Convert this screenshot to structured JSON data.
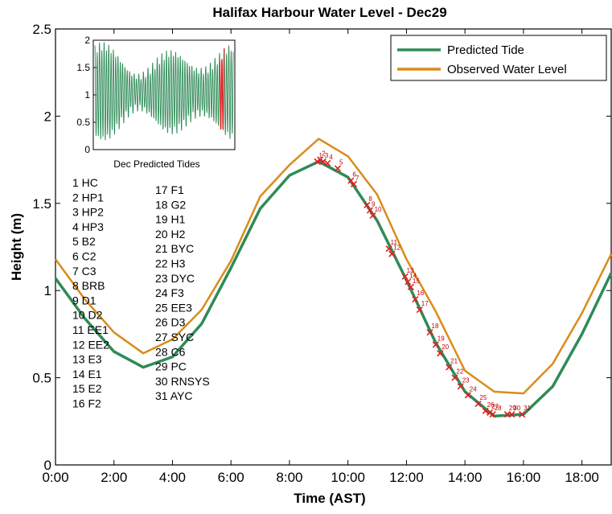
{
  "chart_data": {
    "type": "line",
    "title": "Halifax Harbour Water Level - Dec29",
    "xlabel": "Time (AST)",
    "ylabel": "Height (m)",
    "xlim": [
      0,
      19
    ],
    "ylim": [
      0,
      2.5
    ],
    "x_ticks": [
      "0:00",
      "2:00",
      "4:00",
      "6:00",
      "8:00",
      "10:00",
      "12:00",
      "14:00",
      "16:00",
      "18:00"
    ],
    "y_ticks": [
      "0",
      "0.5",
      "1",
      "1.5",
      "2",
      "2.5"
    ],
    "legend_position": "top-right",
    "series": [
      {
        "name": "Predicted Tide",
        "color": "#2e8b57",
        "x": [
          0,
          1,
          2,
          3,
          4,
          5,
          6,
          7,
          8,
          9,
          10,
          11,
          12,
          13,
          14,
          15,
          16,
          17,
          18,
          19
        ],
        "y": [
          1.07,
          0.84,
          0.65,
          0.56,
          0.62,
          0.81,
          1.13,
          1.47,
          1.66,
          1.74,
          1.65,
          1.4,
          1.06,
          0.7,
          0.42,
          0.28,
          0.29,
          0.45,
          0.75,
          1.1
        ]
      },
      {
        "name": "Observed Water Level",
        "color": "#d98c1a",
        "x": [
          0,
          1,
          2,
          3,
          4,
          5,
          6,
          7,
          8,
          9,
          10,
          11,
          12,
          13,
          14,
          15,
          16,
          17,
          18,
          19
        ],
        "y": [
          1.18,
          0.95,
          0.76,
          0.64,
          0.72,
          0.89,
          1.17,
          1.54,
          1.72,
          1.87,
          1.77,
          1.55,
          1.18,
          0.88,
          0.54,
          0.42,
          0.41,
          0.58,
          0.87,
          1.21
        ]
      }
    ],
    "station_markers": {
      "color": "#e02020",
      "points": [
        {
          "n": 1,
          "x": 8.95,
          "y": 1.74
        },
        {
          "n": 2,
          "x": 9.05,
          "y": 1.75
        },
        {
          "n": 3,
          "x": 9.15,
          "y": 1.74
        },
        {
          "n": 4,
          "x": 9.3,
          "y": 1.73
        },
        {
          "n": 5,
          "x": 9.65,
          "y": 1.7
        },
        {
          "n": 6,
          "x": 10.1,
          "y": 1.63
        },
        {
          "n": 7,
          "x": 10.2,
          "y": 1.61
        },
        {
          "n": 8,
          "x": 10.65,
          "y": 1.49
        },
        {
          "n": 9,
          "x": 10.75,
          "y": 1.46
        },
        {
          "n": 10,
          "x": 10.85,
          "y": 1.43
        },
        {
          "n": 11,
          "x": 11.4,
          "y": 1.24
        },
        {
          "n": 12,
          "x": 11.5,
          "y": 1.21
        },
        {
          "n": 13,
          "x": 11.95,
          "y": 1.08
        },
        {
          "n": 14,
          "x": 12.05,
          "y": 1.05
        },
        {
          "n": 15,
          "x": 12.15,
          "y": 1.02
        },
        {
          "n": 16,
          "x": 12.3,
          "y": 0.95
        },
        {
          "n": 17,
          "x": 12.45,
          "y": 0.89
        },
        {
          "n": 18,
          "x": 12.8,
          "y": 0.76
        },
        {
          "n": 19,
          "x": 13.0,
          "y": 0.69
        },
        {
          "n": 20,
          "x": 13.15,
          "y": 0.64
        },
        {
          "n": 21,
          "x": 13.45,
          "y": 0.56
        },
        {
          "n": 22,
          "x": 13.65,
          "y": 0.5
        },
        {
          "n": 23,
          "x": 13.85,
          "y": 0.45
        },
        {
          "n": 24,
          "x": 14.1,
          "y": 0.4
        },
        {
          "n": 25,
          "x": 14.45,
          "y": 0.35
        },
        {
          "n": 26,
          "x": 14.7,
          "y": 0.31
        },
        {
          "n": 27,
          "x": 14.85,
          "y": 0.3
        },
        {
          "n": 28,
          "x": 14.95,
          "y": 0.29
        },
        {
          "n": 29,
          "x": 15.45,
          "y": 0.29
        },
        {
          "n": 30,
          "x": 15.6,
          "y": 0.29
        },
        {
          "n": 31,
          "x": 15.95,
          "y": 0.29
        }
      ]
    },
    "inset": {
      "xlabel": "Dec Predicted Tides",
      "ylim": [
        0,
        2
      ],
      "y_ticks": [
        "0",
        "0.5",
        "1",
        "1.5",
        "2"
      ],
      "color": "#2e8b57",
      "highlight_color": "#e02020",
      "highlight_day": 29,
      "days": 31
    },
    "stations_col1": [
      "1    HC",
      "2    HP1",
      "3    HP2",
      "4    HP3",
      "5    B2",
      "6    C2",
      "7    C3",
      "8    BRB",
      "9    D1",
      "10  D2",
      "11  EE1",
      "12  EE2",
      "13  E3",
      "14  E1",
      "15  E2",
      "16  F2"
    ],
    "stations_col2": [
      "17  F1",
      "18  G2",
      "19  H1",
      "20  H2",
      "21  BYC",
      "22  H3",
      "23  DYC",
      "24  F3",
      "25  EE3",
      "26  D3",
      "27  SYC",
      "28  C6",
      "29  PC",
      "30  RNSYS",
      "31  AYC"
    ]
  }
}
